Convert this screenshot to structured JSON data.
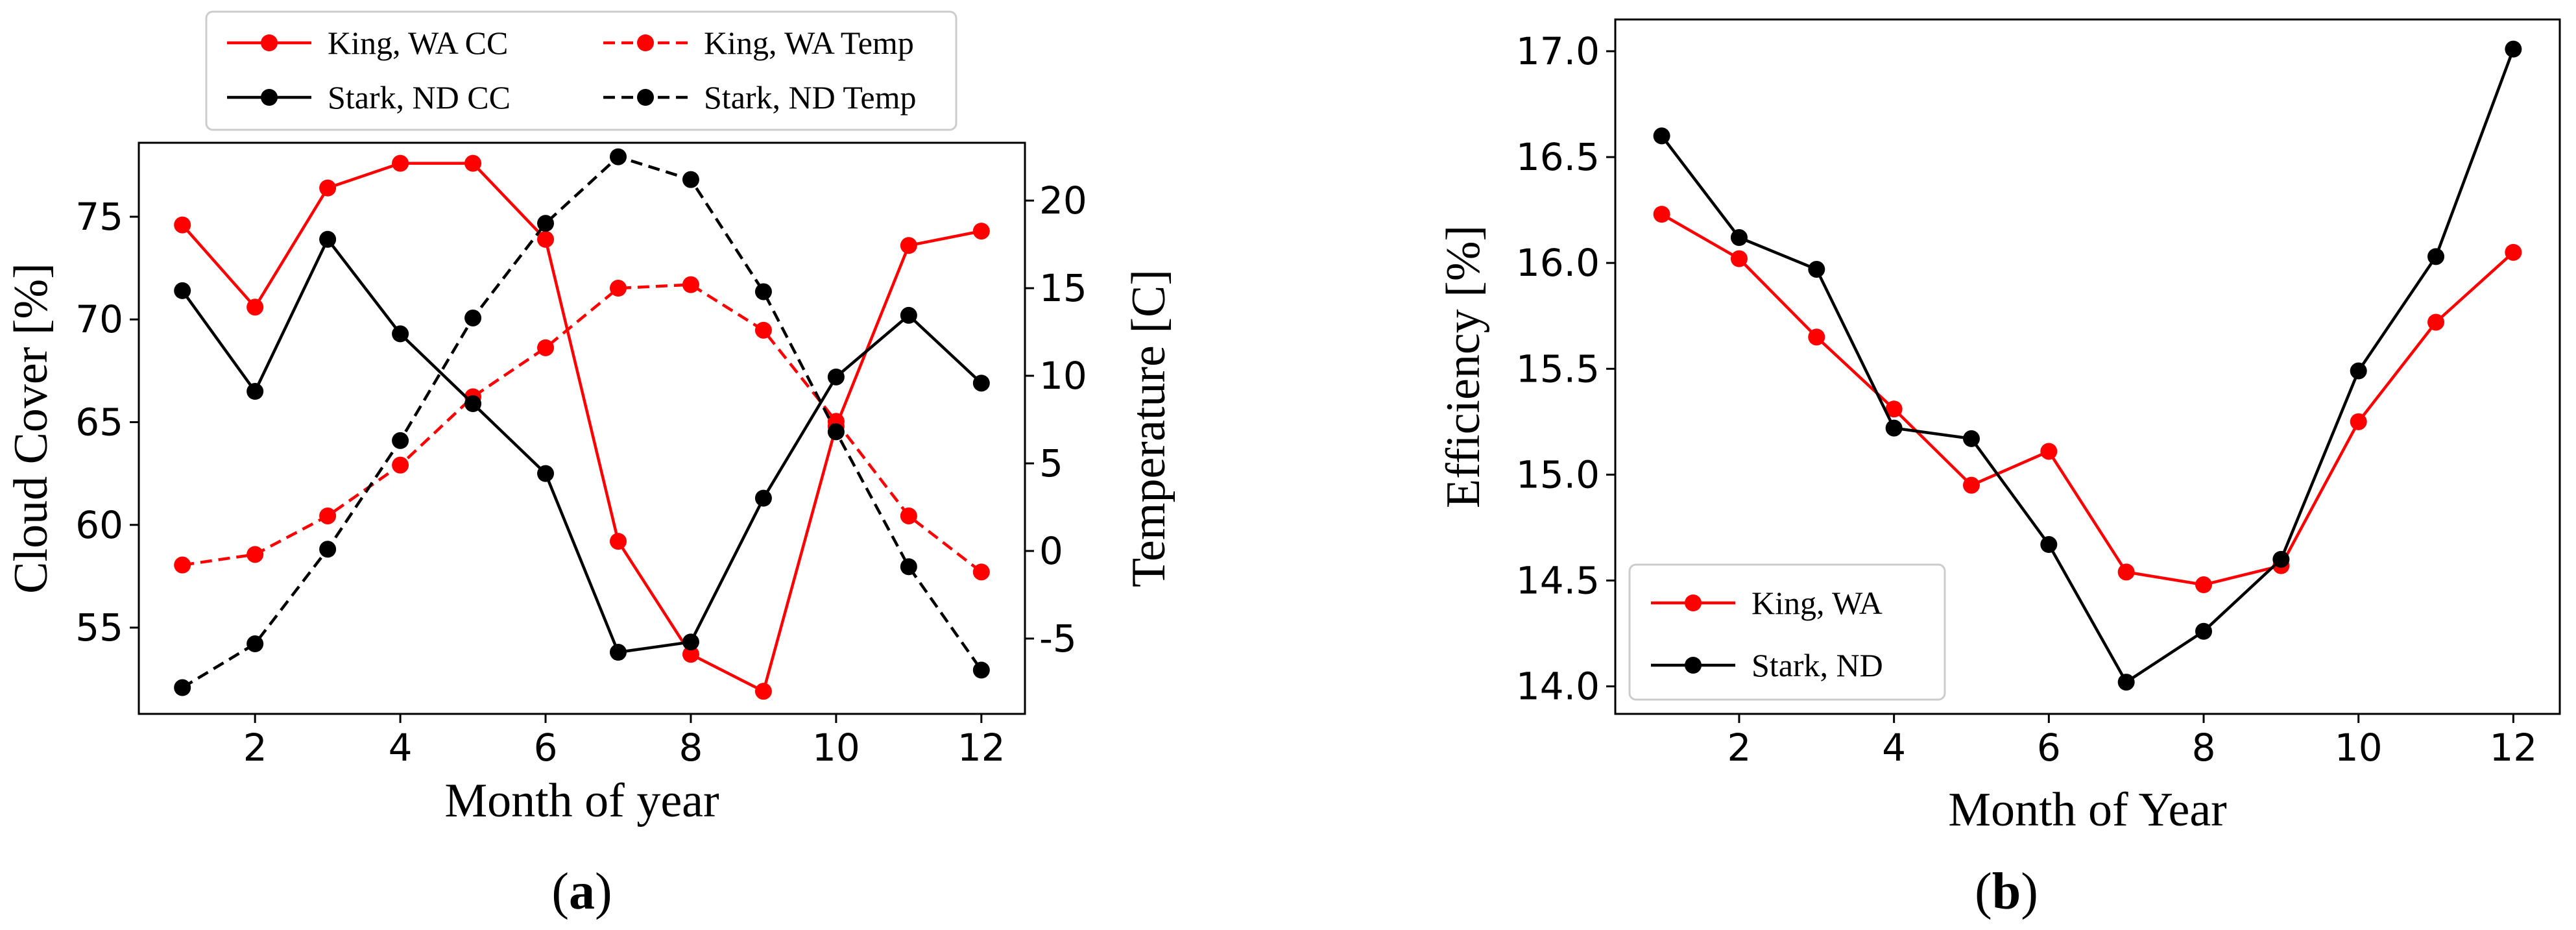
{
  "chart_data": [
    {
      "type": "line",
      "panel_label": "a",
      "x": [
        1,
        2,
        3,
        4,
        5,
        6,
        7,
        8,
        9,
        10,
        11,
        12
      ],
      "xlabel": "Month of year",
      "ylabel": "Cloud Cover [%]",
      "y2label": "Temperature [C]",
      "xlim": [
        0.4,
        12.6
      ],
      "ylim": [
        50.8,
        78.6
      ],
      "y2lim": [
        -9.3,
        23.3
      ],
      "xticks": [
        2,
        4,
        6,
        8,
        10,
        12
      ],
      "yticks": [
        55,
        60,
        65,
        70,
        75
      ],
      "y2ticks": [
        -5,
        0,
        5,
        10,
        15,
        20
      ],
      "legend_position": "top-center",
      "series": [
        {
          "name": "King, WA CC",
          "axis": "left",
          "color": "#ff0000",
          "dash": "solid",
          "values": [
            74.6,
            70.6,
            76.4,
            77.6,
            77.6,
            73.9,
            59.2,
            53.7,
            51.9,
            64.8,
            73.6,
            74.3
          ]
        },
        {
          "name": "King, WA Temp",
          "axis": "right",
          "color": "#ff0000",
          "dash": "dashed",
          "values": [
            -0.8,
            -0.2,
            2.0,
            4.9,
            8.8,
            11.6,
            15.0,
            15.2,
            12.6,
            7.4,
            2.0,
            -1.2
          ]
        },
        {
          "name": "Stark, ND CC",
          "axis": "left",
          "color": "#000000",
          "dash": "solid",
          "values": [
            71.4,
            66.5,
            73.9,
            69.3,
            65.9,
            62.5,
            53.8,
            54.3,
            61.3,
            67.2,
            70.2,
            66.9
          ]
        },
        {
          "name": "Stark, ND Temp",
          "axis": "right",
          "color": "#000000",
          "dash": "dashed",
          "values": [
            -7.8,
            -5.3,
            0.1,
            6.3,
            13.3,
            18.7,
            22.5,
            21.2,
            14.8,
            6.8,
            -0.9,
            -6.8
          ]
        }
      ]
    },
    {
      "type": "line",
      "panel_label": "b",
      "x": [
        1,
        2,
        3,
        4,
        5,
        6,
        7,
        8,
        9,
        10,
        11,
        12
      ],
      "xlabel": "Month of Year",
      "ylabel": "Efficiency [%]",
      "xlim": [
        0.4,
        12.6
      ],
      "ylim": [
        13.87,
        17.15
      ],
      "xticks": [
        2,
        4,
        6,
        8,
        10,
        12
      ],
      "yticks": [
        "14.0",
        "14.5",
        "15.0",
        "15.5",
        "16.0",
        "16.5",
        "17.0"
      ],
      "legend_position": "lower-left",
      "series": [
        {
          "name": "King, WA",
          "color": "#ff0000",
          "dash": "solid",
          "values": [
            16.23,
            16.02,
            15.65,
            15.31,
            14.95,
            15.11,
            14.54,
            14.48,
            14.57,
            15.25,
            15.72,
            16.05
          ]
        },
        {
          "name": "Stark, ND",
          "color": "#000000",
          "dash": "solid",
          "values": [
            16.6,
            16.12,
            15.97,
            15.22,
            15.17,
            14.67,
            14.02,
            14.26,
            14.6,
            15.49,
            16.03,
            17.01
          ]
        }
      ]
    }
  ]
}
